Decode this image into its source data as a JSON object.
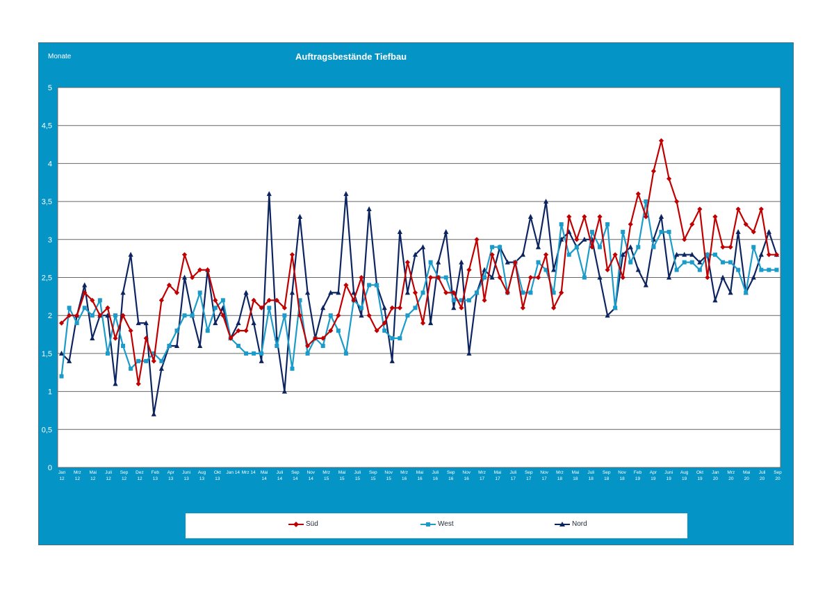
{
  "chart_data": {
    "type": "line",
    "title": "Auftragsbestände Tiefbau",
    "unit_label": "Monate",
    "ylim": [
      0,
      5
    ],
    "yticks": [
      "0",
      "0,5",
      "1",
      "1,5",
      "2",
      "2,5",
      "3",
      "3,5",
      "4",
      "4,5",
      "5"
    ],
    "x_tick_labels": [
      [
        "Jan",
        "12"
      ],
      [
        "Mrz",
        "12"
      ],
      [
        "Mai",
        "12"
      ],
      [
        "Juli",
        "12"
      ],
      [
        "Sep",
        "12"
      ],
      [
        "Dez",
        "12"
      ],
      [
        "Feb",
        "13"
      ],
      [
        "Apr",
        "13"
      ],
      [
        "Juni",
        "13"
      ],
      [
        "Aug",
        "13"
      ],
      [
        "Okt",
        "13"
      ],
      [
        "Jan 14",
        ""
      ],
      [
        "Mrz 14",
        ""
      ],
      [
        "Mai",
        "14"
      ],
      [
        "Juli",
        "14"
      ],
      [
        "Sep",
        "14"
      ],
      [
        "Nov",
        "14"
      ],
      [
        "Mrz",
        "15"
      ],
      [
        "Mai",
        "15"
      ],
      [
        "Juli",
        "15"
      ],
      [
        "Sep",
        "15"
      ],
      [
        "Nov",
        "15"
      ],
      [
        "Mrz",
        "16"
      ],
      [
        "Mai",
        "16"
      ],
      [
        "Juli",
        "16"
      ],
      [
        "Sep",
        "16"
      ],
      [
        "Nov",
        "16"
      ],
      [
        "Mrz",
        "17"
      ],
      [
        "Mai",
        "17"
      ],
      [
        "Juli",
        "17"
      ],
      [
        "Sep",
        "17"
      ],
      [
        "Nov",
        "17"
      ],
      [
        "Mrz",
        "18"
      ],
      [
        "Mai",
        "18"
      ],
      [
        "Juli",
        "18"
      ],
      [
        "Sep",
        "18"
      ],
      [
        "Nov",
        "18"
      ],
      [
        "Feb",
        "19"
      ],
      [
        "Apr",
        "19"
      ],
      [
        "Juni",
        "19"
      ],
      [
        "Aug",
        "19"
      ],
      [
        "Okt",
        "19"
      ],
      [
        "Jan",
        "20"
      ],
      [
        "Mrz",
        "20"
      ],
      [
        "Mai",
        "20"
      ],
      [
        "Juli",
        "20"
      ],
      [
        "Sep",
        "20"
      ]
    ],
    "series": [
      {
        "name": "Süd",
        "color": "#c00000",
        "marker": "diamond",
        "values": [
          1.9,
          2.0,
          2.0,
          2.3,
          2.2,
          2.0,
          2.1,
          1.7,
          2.0,
          1.8,
          1.1,
          1.7,
          1.4,
          2.2,
          2.4,
          2.3,
          2.8,
          2.5,
          2.6,
          2.6,
          2.2,
          2.0,
          1.7,
          1.8,
          1.8,
          2.2,
          2.1,
          2.2,
          2.2,
          2.1,
          2.8,
          2.0,
          1.6,
          1.7,
          1.7,
          1.8,
          2.0,
          2.4,
          2.2,
          2.5,
          2.0,
          1.8,
          1.9,
          2.1,
          2.1,
          2.7,
          2.3,
          1.9,
          2.5,
          2.5,
          2.3,
          2.3,
          2.1,
          2.6,
          3.0,
          2.2,
          2.8,
          2.5,
          2.3,
          2.7,
          2.1,
          2.5,
          2.5,
          2.8,
          2.1,
          2.3,
          3.3,
          3.0,
          3.3,
          2.9,
          3.3,
          2.6,
          2.8,
          2.5,
          3.2,
          3.6,
          3.3,
          3.9,
          4.3,
          3.8,
          3.5,
          3.0,
          3.2,
          3.4,
          2.5,
          3.3,
          2.9,
          2.9,
          3.4,
          3.2,
          3.1,
          3.4,
          2.8,
          2.8
        ]
      },
      {
        "name": "West",
        "color": "#1a9bc9",
        "marker": "square",
        "values": [
          1.2,
          2.1,
          1.9,
          2.1,
          2.0,
          2.2,
          1.5,
          2.0,
          1.6,
          1.3,
          1.4,
          1.4,
          1.5,
          1.4,
          1.6,
          1.8,
          2.0,
          2.0,
          2.3,
          1.8,
          2.1,
          2.2,
          1.7,
          1.6,
          1.5,
          1.5,
          1.5,
          2.1,
          1.6,
          2.0,
          1.3,
          2.2,
          1.5,
          1.7,
          1.6,
          2.0,
          1.8,
          1.5,
          2.2,
          2.1,
          2.4,
          2.4,
          1.8,
          1.7,
          1.7,
          2.0,
          2.1,
          2.3,
          2.7,
          2.5,
          2.5,
          2.2,
          2.2,
          2.2,
          2.3,
          2.5,
          2.9,
          2.9,
          2.3,
          2.7,
          2.3,
          2.3,
          2.7,
          2.6,
          2.3,
          3.2,
          2.8,
          2.9,
          2.5,
          3.1,
          2.9,
          3.2,
          2.1,
          3.1,
          2.7,
          2.9,
          3.5,
          2.9,
          3.1,
          3.1,
          2.6,
          2.7,
          2.7,
          2.6,
          2.8,
          2.8,
          2.7,
          2.7,
          2.6,
          2.3,
          2.9,
          2.6,
          2.6,
          2.6
        ]
      },
      {
        "name": "Nord",
        "color": "#0c2460",
        "marker": "triangle",
        "values": [
          1.5,
          1.4,
          2.0,
          2.4,
          1.7,
          2.0,
          2.0,
          1.1,
          2.3,
          2.8,
          1.9,
          1.9,
          0.7,
          1.3,
          1.6,
          1.6,
          2.5,
          2.0,
          1.6,
          2.6,
          1.9,
          2.1,
          1.7,
          1.9,
          2.3,
          1.9,
          1.4,
          3.6,
          1.7,
          1.0,
          2.3,
          3.3,
          2.3,
          1.7,
          2.1,
          2.3,
          2.3,
          3.6,
          2.3,
          2.0,
          3.4,
          2.4,
          2.1,
          1.4,
          3.1,
          2.3,
          2.8,
          2.9,
          1.9,
          2.7,
          3.1,
          2.1,
          2.7,
          1.5,
          2.3,
          2.6,
          2.5,
          2.9,
          2.7,
          2.7,
          2.8,
          3.3,
          2.9,
          3.5,
          2.6,
          3.0,
          3.1,
          2.9,
          3.0,
          3.0,
          2.5,
          2.0,
          2.1,
          2.8,
          2.9,
          2.6,
          2.4,
          3.0,
          3.3,
          2.5,
          2.8,
          2.8,
          2.8,
          2.7,
          2.8,
          2.2,
          2.5,
          2.3,
          3.1,
          2.3,
          2.5,
          2.8,
          3.1,
          2.8
        ]
      }
    ]
  }
}
